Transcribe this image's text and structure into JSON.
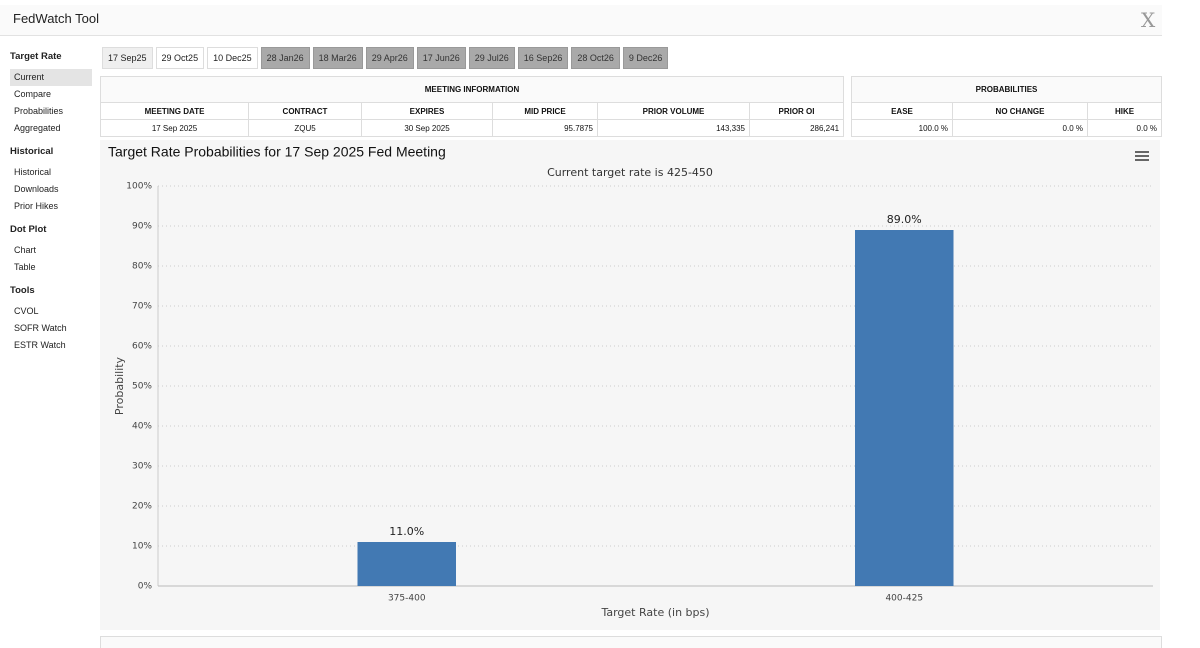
{
  "header": {
    "title": "FedWatch Tool"
  },
  "sidebar": [
    {
      "title": "Target Rate",
      "items": [
        "Current",
        "Compare",
        "Probabilities",
        "Aggregated"
      ]
    },
    {
      "title": "Historical",
      "items": [
        "Historical",
        "Downloads",
        "Prior Hikes"
      ]
    },
    {
      "title": "Dot Plot",
      "items": [
        "Chart",
        "Table"
      ]
    },
    {
      "title": "Tools",
      "items": [
        "CVOL",
        "SOFR Watch",
        "ESTR Watch"
      ]
    }
  ],
  "tabs": [
    "17 Sep25",
    "29 Oct25",
    "10 Dec25",
    "28 Jan26",
    "18 Mar26",
    "29 Apr26",
    "17 Jun26",
    "29 Jul26",
    "16 Sep26",
    "28 Oct26",
    "9 Dec26"
  ],
  "meeting_table": {
    "title": "MEETING INFORMATION",
    "columns": [
      "MEETING DATE",
      "CONTRACT",
      "EXPIRES",
      "MID PRICE",
      "PRIOR VOLUME",
      "PRIOR OI"
    ],
    "rows": [
      [
        "17 Sep 2025",
        "ZQU5",
        "30 Sep 2025",
        "95.7875",
        "143,335",
        "286,241"
      ]
    ]
  },
  "probability_table": {
    "title": "PROBABILITIES",
    "columns": [
      "EASE",
      "NO CHANGE",
      "HIKE"
    ],
    "rows": [
      [
        "100.0 %",
        "0.0 %",
        "0.0 %"
      ]
    ]
  },
  "chart_data": {
    "type": "bar",
    "title": "Target Rate Probabilities for 17 Sep 2025 Fed Meeting",
    "subtitle": "Current target rate is 425-450",
    "x_label": "Target Rate (in bps)",
    "y_label": "Probability",
    "categories": [
      "375-400",
      "400-425"
    ],
    "values": [
      11,
      89
    ],
    "value_labels": [
      "11.0%",
      "89.0%"
    ],
    "color": "#4279b3",
    "ylim": [
      0,
      100
    ],
    "yticks": [
      {
        "value": 0,
        "label": "0%"
      },
      {
        "value": 10,
        "label": "10%"
      },
      {
        "value": 20,
        "label": "20%"
      },
      {
        "value": 30,
        "label": "30%"
      },
      {
        "value": 40,
        "label": "40%"
      },
      {
        "value": 50,
        "label": "50%"
      },
      {
        "value": 60,
        "label": "60%"
      },
      {
        "value": 70,
        "label": "70%"
      },
      {
        "value": 80,
        "label": "80%"
      },
      {
        "value": 90,
        "label": "90%"
      },
      {
        "value": 100,
        "label": "100%"
      }
    ],
    "grid": true
  }
}
